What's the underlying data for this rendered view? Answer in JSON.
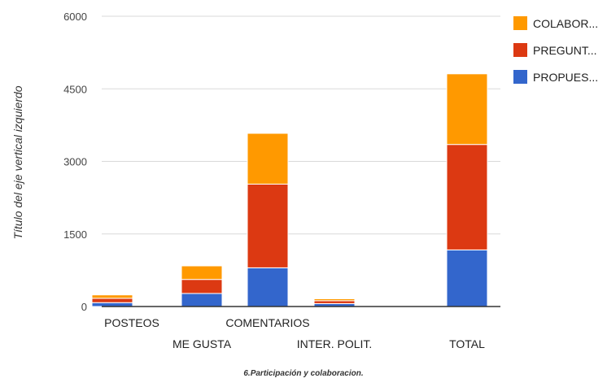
{
  "chart_data": {
    "type": "bar",
    "stacked": true,
    "categories": [
      "POSTEOS",
      "ME GUSTA",
      "COMENTARIOS",
      "INTER. POLIT.",
      "TOTAL"
    ],
    "series": [
      {
        "name": "PROPUES...",
        "color": "#3366cc",
        "values": [
          80,
          270,
          800,
          60,
          1170
        ]
      },
      {
        "name": "PREGUNT...",
        "color": "#dc3912",
        "values": [
          90,
          290,
          1730,
          60,
          2180
        ]
      },
      {
        "name": "COLABOR...",
        "color": "#ff9900",
        "values": [
          70,
          280,
          1050,
          40,
          1460
        ]
      }
    ],
    "ylabel": "Título del eje vertical izquierdo",
    "caption": "6.Participación y colaboracion.",
    "yticks": [
      "0",
      "1500",
      "3000",
      "4500",
      "6000"
    ],
    "ylim": [
      0,
      6000
    ],
    "grid": true,
    "legend_position": "right"
  }
}
